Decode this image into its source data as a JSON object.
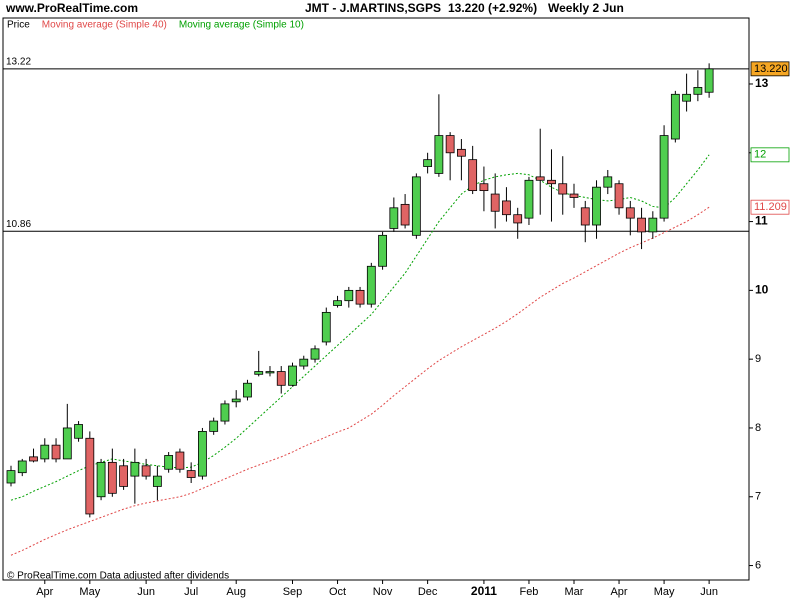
{
  "chart_data": {
    "type": "candlestick",
    "site": "www.ProRealTime.com",
    "title": "JMT - J.MARTINS,SGPS",
    "last_change": "13.220 (+2.92%)",
    "period": "Weekly 2 Jun",
    "footer": "© ProRealTime.com  Data adjusted after dividends",
    "categories": [
      null,
      null,
      null,
      "Apr",
      null,
      null,
      null,
      "May",
      null,
      null,
      null,
      null,
      "Jun",
      null,
      null,
      null,
      "Jul",
      null,
      null,
      null,
      "Aug",
      null,
      null,
      null,
      null,
      "Sep",
      null,
      null,
      null,
      "Oct",
      null,
      null,
      null,
      "Nov",
      null,
      null,
      null,
      "Dec",
      null,
      null,
      null,
      null,
      "2011",
      null,
      null,
      null,
      "Feb",
      null,
      null,
      null,
      "Mar",
      null,
      null,
      null,
      "Apr",
      null,
      null,
      null,
      "May",
      null,
      null,
      null,
      "Jun"
    ],
    "series": [
      {
        "name": "Price",
        "up_color": "#4fce4f",
        "down_color": "#e06464",
        "last_label": "13.220",
        "label_color": "#f5a623",
        "open": [
          7.2,
          7.35,
          7.58,
          7.55,
          7.75,
          7.55,
          7.85,
          7.85,
          7.0,
          7.5,
          7.45,
          7.3,
          7.45,
          7.15,
          7.4,
          7.65,
          7.38,
          7.3,
          7.95,
          8.1,
          8.38,
          8.45,
          8.78,
          8.8,
          8.82,
          8.62,
          8.9,
          9.0,
          9.25,
          9.78,
          9.85,
          10.0,
          9.8,
          10.35,
          10.9,
          11.25,
          10.8,
          11.8,
          11.7,
          12.25,
          12.05,
          11.9,
          11.55,
          11.4,
          11.3,
          11.1,
          11.05,
          11.65,
          11.6,
          11.55,
          11.4,
          11.2,
          10.95,
          11.5,
          11.55,
          11.2,
          11.05,
          10.85,
          11.05,
          12.2,
          12.75,
          12.85,
          12.88
        ],
        "high": [
          7.45,
          7.55,
          7.7,
          7.85,
          7.85,
          8.35,
          8.1,
          7.95,
          7.55,
          7.7,
          7.55,
          7.7,
          7.55,
          7.45,
          7.65,
          7.7,
          7.5,
          8.0,
          8.15,
          8.4,
          8.55,
          8.7,
          9.12,
          8.9,
          8.9,
          8.95,
          9.05,
          9.2,
          9.75,
          9.92,
          10.05,
          10.05,
          10.4,
          10.85,
          11.35,
          11.4,
          11.7,
          12.0,
          12.85,
          12.3,
          12.2,
          12.1,
          11.8,
          11.7,
          11.5,
          11.2,
          11.65,
          12.35,
          12.05,
          11.95,
          11.55,
          11.3,
          11.6,
          11.75,
          11.6,
          11.3,
          11.2,
          11.15,
          12.4,
          12.9,
          13.15,
          13.2,
          13.3
        ],
        "low": [
          7.15,
          7.3,
          7.5,
          7.5,
          7.5,
          7.55,
          7.8,
          6.7,
          6.95,
          7.0,
          7.1,
          6.9,
          7.25,
          6.95,
          7.35,
          7.35,
          7.2,
          7.25,
          7.9,
          8.05,
          8.3,
          8.4,
          8.75,
          8.75,
          8.5,
          8.6,
          8.85,
          8.95,
          9.2,
          9.75,
          9.75,
          9.75,
          9.75,
          10.3,
          10.85,
          10.9,
          10.75,
          11.7,
          11.65,
          11.6,
          11.6,
          11.4,
          11.15,
          10.9,
          11.0,
          10.75,
          10.95,
          11.1,
          11.0,
          11.1,
          11.2,
          10.7,
          10.75,
          11.4,
          11.1,
          10.8,
          10.6,
          10.75,
          11.0,
          12.15,
          12.6,
          12.75,
          12.8
        ],
        "close": [
          7.38,
          7.52,
          7.52,
          7.75,
          7.55,
          8.0,
          8.05,
          6.75,
          7.5,
          7.05,
          7.15,
          7.5,
          7.3,
          7.3,
          7.6,
          7.4,
          7.28,
          7.95,
          8.1,
          8.35,
          8.42,
          8.65,
          8.82,
          8.82,
          8.62,
          8.9,
          9.0,
          9.15,
          9.68,
          9.85,
          10.0,
          9.8,
          10.35,
          10.8,
          11.2,
          10.95,
          11.65,
          11.9,
          12.25,
          12.0,
          11.95,
          11.45,
          11.45,
          11.15,
          11.1,
          10.98,
          11.6,
          11.6,
          11.55,
          11.4,
          11.35,
          10.95,
          11.5,
          11.65,
          11.2,
          11.05,
          10.85,
          11.05,
          12.25,
          12.85,
          12.85,
          12.95,
          13.22
        ]
      },
      {
        "name": "Moving average (Simple 40)",
        "color": "#e04848",
        "last_label": "11.209",
        "values": [
          6.15,
          6.22,
          6.3,
          6.38,
          6.45,
          6.52,
          6.58,
          6.64,
          6.7,
          6.76,
          6.82,
          6.87,
          6.91,
          6.94,
          6.97,
          7.0,
          7.05,
          7.12,
          7.19,
          7.26,
          7.33,
          7.4,
          7.46,
          7.52,
          7.58,
          7.65,
          7.73,
          7.8,
          7.87,
          7.94,
          8.0,
          8.1,
          8.2,
          8.33,
          8.47,
          8.6,
          8.73,
          8.86,
          8.98,
          9.08,
          9.18,
          9.27,
          9.36,
          9.45,
          9.55,
          9.66,
          9.78,
          9.9,
          10.0,
          10.1,
          10.18,
          10.27,
          10.36,
          10.45,
          10.54,
          10.62,
          10.69,
          10.76,
          10.84,
          10.92,
          11.0,
          11.1,
          11.209
        ]
      },
      {
        "name": "Moving average (Simple 10)",
        "color": "#00a000",
        "last_label": "12",
        "values": [
          6.95,
          7.0,
          7.08,
          7.15,
          7.22,
          7.3,
          7.38,
          7.45,
          7.5,
          7.55,
          7.52,
          7.5,
          7.47,
          7.45,
          7.43,
          7.42,
          7.43,
          7.5,
          7.6,
          7.72,
          7.85,
          8.0,
          8.15,
          8.3,
          8.45,
          8.6,
          8.75,
          8.9,
          9.05,
          9.2,
          9.35,
          9.5,
          9.65,
          9.85,
          10.05,
          10.25,
          10.5,
          10.75,
          11.0,
          11.2,
          11.4,
          11.52,
          11.6,
          11.65,
          11.68,
          11.7,
          11.68,
          11.6,
          11.5,
          11.42,
          11.38,
          11.35,
          11.32,
          11.3,
          11.32,
          11.35,
          11.3,
          11.22,
          11.2,
          11.35,
          11.55,
          11.75,
          11.97
        ]
      }
    ],
    "hlines": [
      13.22,
      10.86
    ],
    "ylim": [
      5.79,
      13.93
    ],
    "yticks": [
      6,
      7,
      8,
      9,
      10,
      11,
      12,
      13
    ],
    "grid": false
  }
}
